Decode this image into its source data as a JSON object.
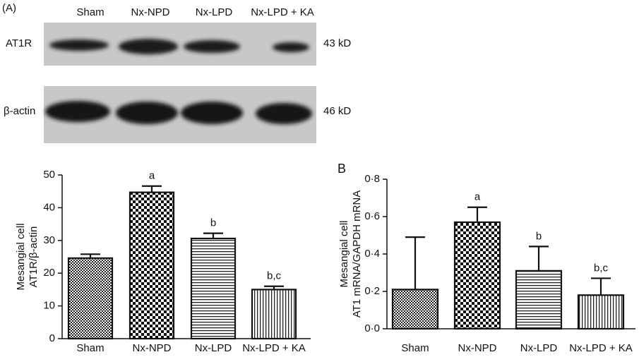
{
  "blot": {
    "panel_label": "(A)",
    "lanes": [
      "Sham",
      "Nx-NPD",
      "Nx-LPD",
      "Nx-LPD + KA"
    ],
    "rows": [
      {
        "label": "AT1R",
        "size": "43 kD"
      },
      {
        "label": "β-actin",
        "size": "46 kD"
      }
    ]
  },
  "chart_data": [
    {
      "type": "bar",
      "ylabel": [
        "Mesangial cell",
        "AT1R/β-actin"
      ],
      "categories": [
        "Sham",
        "Nx-NPD",
        "Nx-LPD",
        "Nx-LPD + KA"
      ],
      "values": [
        24.6,
        44.7,
        30.6,
        15.0
      ],
      "errors": [
        1.2,
        1.9,
        1.6,
        1.0
      ],
      "annotations": [
        null,
        "a",
        "b",
        "b,c"
      ],
      "fill_patterns": [
        "checker-small",
        "checker-large",
        "hlines",
        "vlines"
      ],
      "ylim": [
        0,
        50
      ],
      "yticks": [
        0,
        10,
        20,
        30,
        40,
        50
      ]
    },
    {
      "type": "bar",
      "panel_label": "B",
      "ylabel": [
        "Mesangial cell",
        "AT1 mRNA/GAPDH mRNA"
      ],
      "categories": [
        "Sham",
        "Nx-NPD",
        "Nx-LPD",
        "Nx-LPD + KA"
      ],
      "values": [
        0.21,
        0.57,
        0.31,
        0.18
      ],
      "errors": [
        0.28,
        0.08,
        0.13,
        0.09
      ],
      "annotations": [
        null,
        "a",
        "b",
        "b,c"
      ],
      "fill_patterns": [
        "checker-small",
        "checker-large",
        "hlines",
        "vlines"
      ],
      "ylim": [
        0,
        0.8
      ],
      "yticks": [
        {
          "value": 0,
          "label": "0·0"
        },
        {
          "value": 0.2,
          "label": "0·2"
        },
        {
          "value": 0.4,
          "label": "0·4"
        },
        {
          "value": 0.6,
          "label": "0·6"
        },
        {
          "value": 0.8,
          "label": "0·8"
        }
      ]
    }
  ]
}
